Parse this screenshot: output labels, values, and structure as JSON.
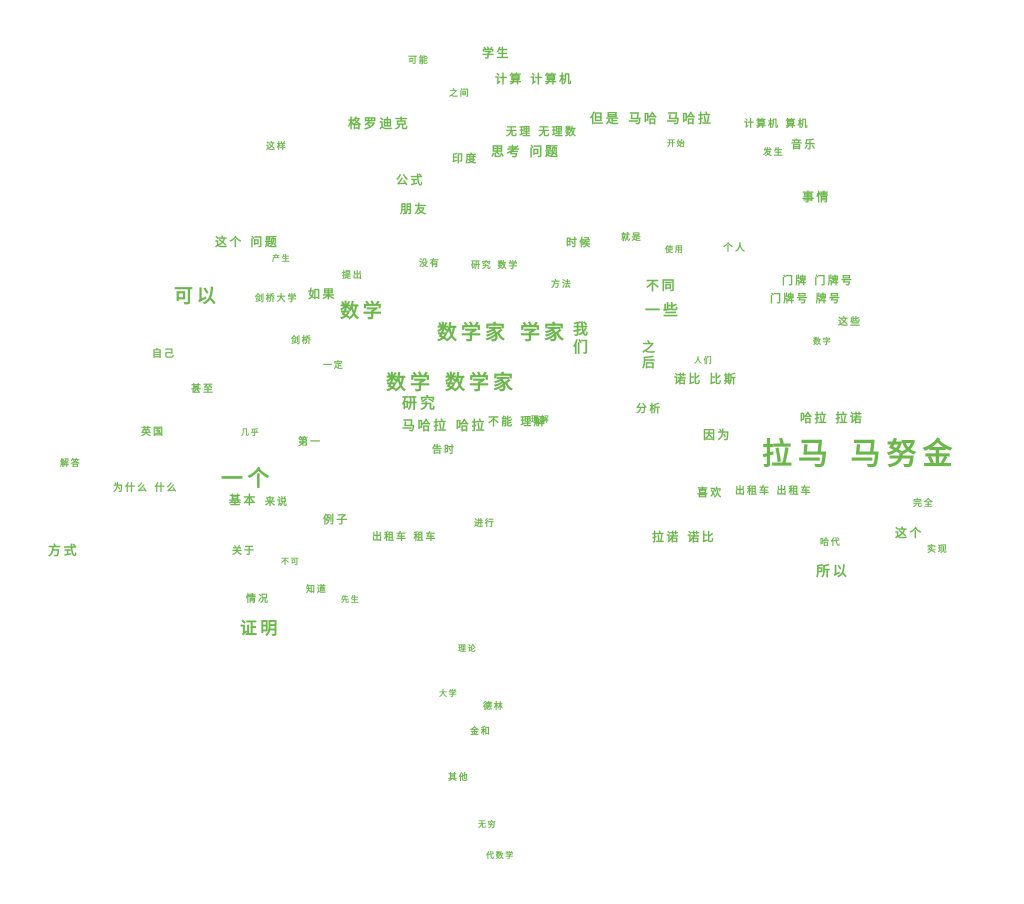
{
  "title": "",
  "color": "#6ab84a",
  "words": [
    {
      "text": "拉马 马努金",
      "weight": 26
    },
    {
      "text": "数学家 学家",
      "weight": 20
    },
    {
      "text": "数学 数学家",
      "weight": 20
    },
    {
      "text": "一个",
      "weight": 20
    },
    {
      "text": "可以",
      "weight": 18
    },
    {
      "text": "数学",
      "weight": 18
    },
    {
      "text": "证明",
      "weight": 18
    },
    {
      "text": "我们",
      "weight": 16
    },
    {
      "text": "一些",
      "weight": 15
    },
    {
      "text": "研究",
      "weight": 15
    },
    {
      "text": "方式",
      "weight": 14
    },
    {
      "text": "所以",
      "weight": 14
    },
    {
      "text": "这个",
      "weight": 13
    },
    {
      "text": "马哈拉 哈拉",
      "weight": 13
    },
    {
      "text": "但是 马哈 马哈拉",
      "weight": 13
    },
    {
      "text": "格罗迪克",
      "weight": 13
    },
    {
      "text": "思考 问题",
      "weight": 13
    },
    {
      "text": "诺比 比斯",
      "weight": 13
    },
    {
      "text": "拉诺 诺比",
      "weight": 13
    },
    {
      "text": "哈拉 拉诺",
      "weight": 13
    },
    {
      "text": "计算 计算机",
      "weight": 12
    },
    {
      "text": "无理 无理数",
      "weight": 11
    },
    {
      "text": "这个 问题",
      "weight": 12
    },
    {
      "text": "不同",
      "weight": 13
    },
    {
      "text": "之后",
      "weight": 13
    },
    {
      "text": "门牌 门牌号",
      "weight": 11
    },
    {
      "text": "门牌号 牌号",
      "weight": 11
    },
    {
      "text": "事情",
      "weight": 12
    },
    {
      "text": "学生",
      "weight": 12
    },
    {
      "text": "公式",
      "weight": 12
    },
    {
      "text": "朋友",
      "weight": 12
    },
    {
      "text": "如果",
      "weight": 12
    },
    {
      "text": "时候",
      "weight": 11
    },
    {
      "text": "基本",
      "weight": 12
    },
    {
      "text": "因为",
      "weight": 12
    },
    {
      "text": "为什么 什么",
      "weight": 10
    },
    {
      "text": "出租车 出租车",
      "weight": 10
    },
    {
      "text": "出租车 租车",
      "weight": 10
    },
    {
      "text": "不能 理解",
      "weight": 11
    },
    {
      "text": "计算机 算机",
      "weight": 10
    },
    {
      "text": "音乐",
      "weight": 11
    },
    {
      "text": "印度",
      "weight": 11
    },
    {
      "text": "例子",
      "weight": 11
    },
    {
      "text": "分析",
      "weight": 11
    },
    {
      "text": "喜欢",
      "weight": 11
    },
    {
      "text": "这些",
      "weight": 10
    },
    {
      "text": "告时",
      "weight": 10
    },
    {
      "text": "研究 数学",
      "weight": 10
    },
    {
      "text": "情况",
      "weight": 10
    },
    {
      "text": "英国",
      "weight": 10
    },
    {
      "text": "甚至",
      "weight": 10
    },
    {
      "text": "第一",
      "weight": 10
    },
    {
      "text": "关于",
      "weight": 10
    },
    {
      "text": "知道",
      "weight": 9
    },
    {
      "text": "来说",
      "weight": 10
    },
    {
      "text": "个人",
      "weight": 10
    },
    {
      "text": "进行",
      "weight": 9
    },
    {
      "text": "自己",
      "weight": 10
    },
    {
      "text": "没有",
      "weight": 9
    },
    {
      "text": "就是",
      "weight": 9
    },
    {
      "text": "剑桥大学",
      "weight": 9
    },
    {
      "text": "方法",
      "weight": 9
    },
    {
      "text": "德林",
      "weight": 9
    },
    {
      "text": "金和",
      "weight": 9
    },
    {
      "text": "其他",
      "weight": 9
    },
    {
      "text": "代数学",
      "weight": 8
    },
    {
      "text": "大学",
      "weight": 8
    },
    {
      "text": "无穷",
      "weight": 8
    },
    {
      "text": "理论",
      "weight": 8
    },
    {
      "text": "可能",
      "weight": 9
    },
    {
      "text": "之间",
      "weight": 9
    },
    {
      "text": "一定",
      "weight": 9
    },
    {
      "text": "产生",
      "weight": 8
    },
    {
      "text": "提出",
      "weight": 9
    },
    {
      "text": "这样",
      "weight": 9
    },
    {
      "text": "剑桥",
      "weight": 9
    },
    {
      "text": "解答",
      "weight": 9
    },
    {
      "text": "完全",
      "weight": 9
    },
    {
      "text": "实现",
      "weight": 9
    },
    {
      "text": "哈代",
      "weight": 9
    },
    {
      "text": "发生",
      "weight": 9
    },
    {
      "text": "使用",
      "weight": 8
    },
    {
      "text": "几乎",
      "weight": 8
    },
    {
      "text": "先生",
      "weight": 8
    },
    {
      "text": "不可",
      "weight": 8
    },
    {
      "text": "理解",
      "weight": 8
    },
    {
      "text": "开始",
      "weight": 8
    },
    {
      "text": "人们",
      "weight": 8
    },
    {
      "text": "数字",
      "weight": 8
    }
  ]
}
